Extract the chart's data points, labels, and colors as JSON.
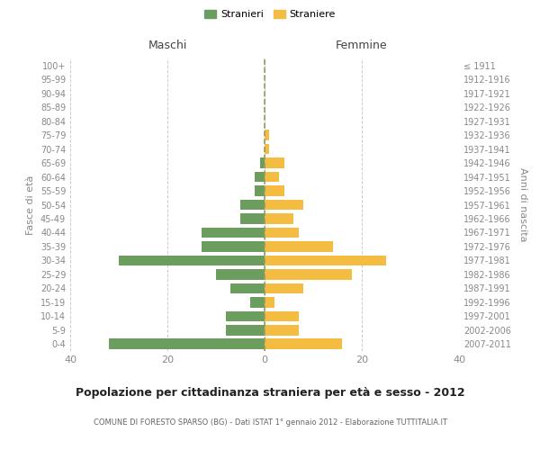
{
  "age_groups": [
    "0-4",
    "5-9",
    "10-14",
    "15-19",
    "20-24",
    "25-29",
    "30-34",
    "35-39",
    "40-44",
    "45-49",
    "50-54",
    "55-59",
    "60-64",
    "65-69",
    "70-74",
    "75-79",
    "80-84",
    "85-89",
    "90-94",
    "95-99",
    "100+"
  ],
  "birth_years": [
    "2007-2011",
    "2002-2006",
    "1997-2001",
    "1992-1996",
    "1987-1991",
    "1982-1986",
    "1977-1981",
    "1972-1976",
    "1967-1971",
    "1962-1966",
    "1957-1961",
    "1952-1956",
    "1947-1951",
    "1942-1946",
    "1937-1941",
    "1932-1936",
    "1927-1931",
    "1922-1926",
    "1917-1921",
    "1912-1916",
    "≤ 1911"
  ],
  "males": [
    32,
    8,
    8,
    3,
    7,
    10,
    30,
    13,
    13,
    5,
    5,
    2,
    2,
    1,
    0,
    0,
    0,
    0,
    0,
    0,
    0
  ],
  "females": [
    16,
    7,
    7,
    2,
    8,
    18,
    25,
    14,
    7,
    6,
    8,
    4,
    3,
    4,
    1,
    1,
    0,
    0,
    0,
    0,
    0
  ],
  "male_color": "#6b9e5e",
  "female_color": "#f5bc42",
  "bg_color": "#ffffff",
  "grid_color": "#cccccc",
  "title": "Popolazione per cittadinanza straniera per età e sesso - 2012",
  "subtitle": "COMUNE DI FORESTO SPARSO (BG) - Dati ISTAT 1° gennaio 2012 - Elaborazione TUTTITALIA.IT",
  "xlabel_left": "Maschi",
  "xlabel_right": "Femmine",
  "ylabel_left": "Fasce di età",
  "ylabel_right": "Anni di nascita",
  "legend_male": "Stranieri",
  "legend_female": "Straniere",
  "xlim": 40,
  "dashed_color": "#999966"
}
